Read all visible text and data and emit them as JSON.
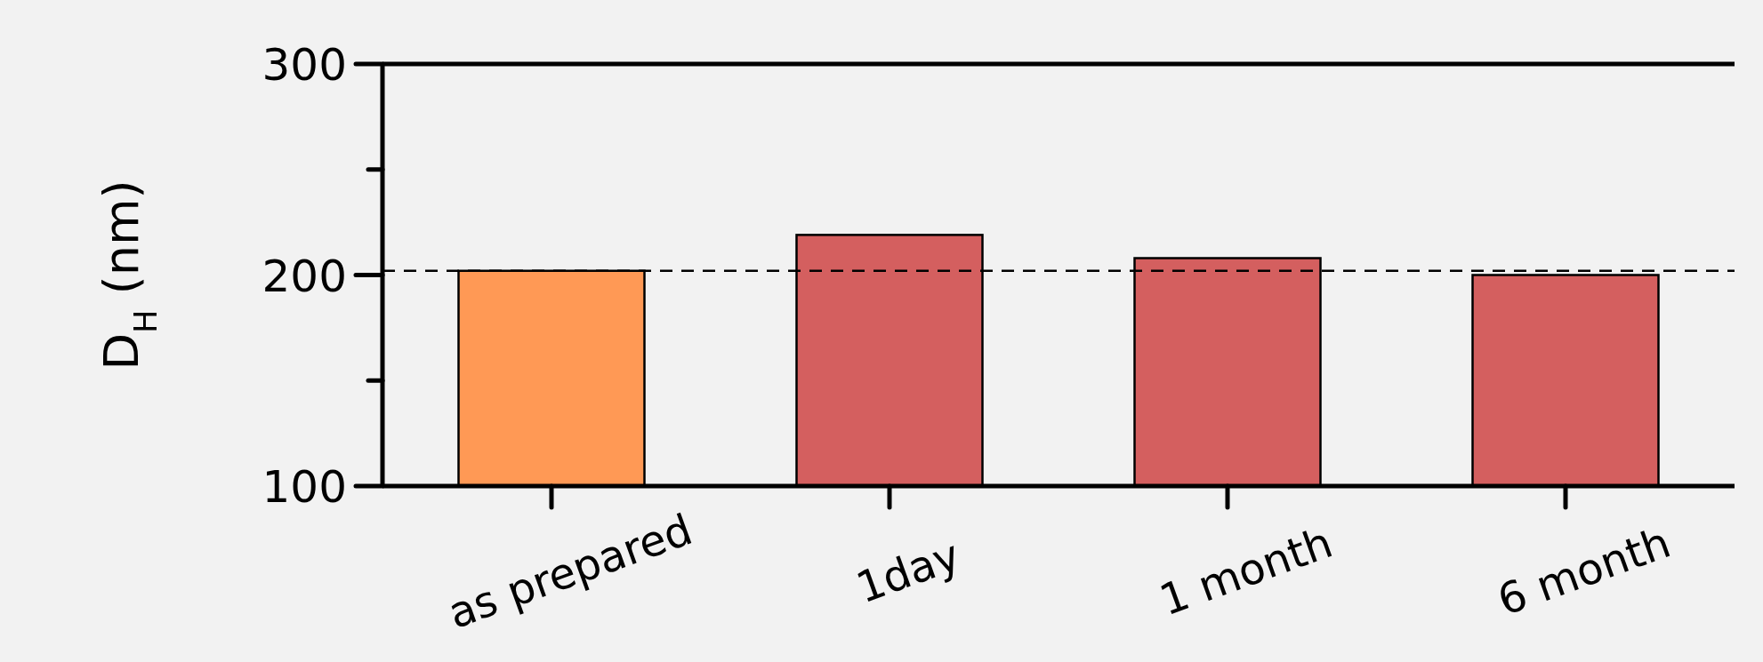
{
  "chart_data": {
    "type": "bar",
    "ylabel": "D$_{H}$ (nm)",
    "categories": [
      "as prepared",
      "1day",
      "1 month",
      "6 month"
    ],
    "values": [
      202,
      219,
      208,
      200
    ],
    "colors": [
      "#ff9955",
      "#d45f5f",
      "#d45f5f",
      "#d45f5f"
    ],
    "ylim": [
      100,
      300
    ],
    "yticks": [
      100,
      {
        "value": 150,
        "label": null
      },
      200,
      {
        "value": 250,
        "label": null
      },
      300
    ],
    "ref_lines": [
      {
        "axis": "y",
        "value": 202,
        "line_style": "dashed"
      }
    ],
    "grid": false
  }
}
